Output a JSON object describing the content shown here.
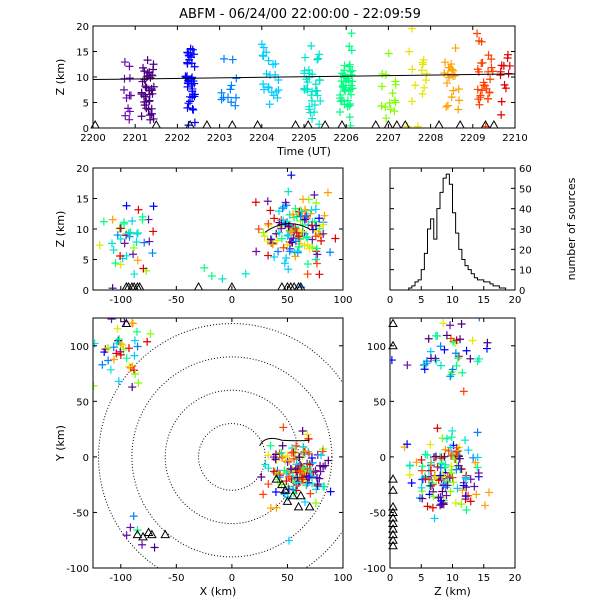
{
  "title": "ABFM - 06/24/00 22:00:00 - 22:09:59",
  "colors": {
    "palette": [
      "#6a0dad",
      "#4b0082",
      "#0000ff",
      "#0080ff",
      "#00ccff",
      "#00e5cc",
      "#00ff80",
      "#80ff00",
      "#e5e500",
      "#ffa000",
      "#ff4000",
      "#e00000"
    ],
    "station_marker": "#000000",
    "range_rings": "#000000"
  },
  "chart_data": [
    {
      "id": "time-height",
      "type": "scatter",
      "title": "",
      "xlabel": "Time (UT)",
      "ylabel": "Z (km)",
      "xlim": [
        2200,
        2210
      ],
      "ylim": [
        0,
        20
      ],
      "x_ticks": [
        "2200",
        "2201",
        "2202",
        "2203",
        "2204",
        "2205",
        "2206",
        "2207",
        "2208",
        "2209",
        "2210"
      ],
      "y_ticks": [
        "0",
        "5",
        "10",
        "15",
        "20"
      ],
      "marker": "plus",
      "note_line": "black reference line rising from Z≈9.5 to Z≈10.6",
      "line_points": [
        [
          2200,
          9.5
        ],
        [
          2210,
          10.6
        ]
      ],
      "station_x": [
        2200.05,
        2201.5,
        2202.3,
        2202.7,
        2203.3,
        2203.9,
        2204.8,
        2205.1,
        2205.5,
        2205.9,
        2206.7,
        2207.0,
        2207.2,
        2207.4,
        2208.2,
        2208.7,
        2209.3,
        2209.5
      ],
      "bursts": [
        {
          "x": 2200.8,
          "spread": 0.1,
          "yc": 8,
          "ysd": 4,
          "n": 12,
          "color_index": 0
        },
        {
          "x": 2201.3,
          "spread": 0.15,
          "yc": 8,
          "ysd": 3.5,
          "n": 40,
          "color_index": 1
        },
        {
          "x": 2202.3,
          "spread": 0.12,
          "yc": 9,
          "ysd": 3.5,
          "n": 40,
          "color_index": 2
        },
        {
          "x": 2203.2,
          "spread": 0.2,
          "yc": 9,
          "ysd": 3.5,
          "n": 12,
          "color_index": 3
        },
        {
          "x": 2204.2,
          "spread": 0.2,
          "yc": 9,
          "ysd": 3.5,
          "n": 22,
          "color_index": 4
        },
        {
          "x": 2205.2,
          "spread": 0.2,
          "yc": 8.5,
          "ysd": 3.5,
          "n": 35,
          "color_index": 5
        },
        {
          "x": 2206.0,
          "spread": 0.15,
          "yc": 8.5,
          "ysd": 3.5,
          "n": 45,
          "color_index": 6
        },
        {
          "x": 2207.0,
          "spread": 0.2,
          "yc": 8,
          "ysd": 3.5,
          "n": 15,
          "color_index": 7
        },
        {
          "x": 2207.7,
          "spread": 0.25,
          "yc": 9,
          "ysd": 4,
          "n": 15,
          "color_index": 8
        },
        {
          "x": 2208.5,
          "spread": 0.2,
          "yc": 9,
          "ysd": 3.5,
          "n": 20,
          "color_index": 9
        },
        {
          "x": 2209.3,
          "spread": 0.2,
          "yc": 9,
          "ysd": 3.5,
          "n": 28,
          "color_index": 10
        },
        {
          "x": 2209.8,
          "spread": 0.15,
          "yc": 9,
          "ysd": 4,
          "n": 12,
          "color_index": 11
        }
      ]
    },
    {
      "id": "x-z",
      "type": "scatter",
      "xlabel": "",
      "ylabel": "Z (km)",
      "xlim": [
        -125,
        100
      ],
      "ylim": [
        0,
        20
      ],
      "x_ticks": [
        "-100",
        "-50",
        "0",
        "50",
        "100"
      ],
      "y_ticks": [
        "0",
        "5",
        "10",
        "15",
        "20"
      ],
      "marker": "plus",
      "station_x": [
        -95,
        -93,
        -90,
        -88,
        -85,
        -83,
        -30,
        0,
        45,
        50,
        53,
        56,
        60,
        62
      ],
      "clusters": [
        {
          "xc": -95,
          "xsd": 12,
          "yc": 8.5,
          "ysd": 3,
          "n": 45
        },
        {
          "xc": 60,
          "xsd": 15,
          "yc": 9,
          "ysd": 3,
          "n": 150
        },
        {
          "xc": -25,
          "xsd": 15,
          "yc": 3,
          "ysd": 2,
          "n": 4
        }
      ]
    },
    {
      "id": "altitude-histogram",
      "type": "line",
      "xlabel": "",
      "ylabel": "number of sources",
      "xlim": [
        0,
        20
      ],
      "ylim": [
        0,
        60
      ],
      "x_ticks": [
        "0",
        "5",
        "10",
        "15",
        "20"
      ],
      "y_ticks": [
        "0",
        "10",
        "20",
        "30",
        "40",
        "50",
        "60"
      ],
      "step": 0.5,
      "bins_x": [
        3,
        3.5,
        4,
        4.5,
        5,
        5.5,
        6,
        6.5,
        7,
        7.5,
        8,
        8.5,
        9,
        9.5,
        10,
        10.5,
        11,
        11.5,
        12,
        12.5,
        13,
        13.5,
        14,
        14.5,
        15,
        15.5,
        16,
        16.5,
        17,
        17.5,
        18
      ],
      "counts": [
        1,
        2,
        4,
        5,
        10,
        18,
        30,
        35,
        25,
        40,
        48,
        55,
        57,
        52,
        38,
        28,
        20,
        15,
        12,
        10,
        8,
        6,
        5,
        5,
        4,
        4,
        3,
        2,
        2,
        1,
        1
      ]
    },
    {
      "id": "plan-view",
      "type": "scatter",
      "xlabel": "X (km)",
      "ylabel": "Y (km)",
      "xlim": [
        -125,
        100
      ],
      "ylim": [
        -100,
        125
      ],
      "x_ticks": [
        "-100",
        "-50",
        "0",
        "50",
        "100"
      ],
      "y_ticks": [
        "-100",
        "-50",
        "0",
        "50",
        "100"
      ],
      "marker": "plus",
      "range_rings_km": [
        30,
        60,
        90,
        120
      ],
      "stations": [
        [
          -95,
          120
        ],
        [
          -85,
          -70
        ],
        [
          -80,
          -72
        ],
        [
          -75,
          -68
        ],
        [
          -72,
          -70
        ],
        [
          -60,
          -70
        ],
        [
          40,
          -20
        ],
        [
          45,
          -25
        ],
        [
          48,
          -30
        ],
        [
          50,
          -40
        ],
        [
          55,
          -35
        ],
        [
          60,
          -45
        ],
        [
          62,
          -35
        ],
        [
          70,
          -45
        ]
      ],
      "clusters": [
        {
          "xc": 60,
          "xsd": 15,
          "yc": -15,
          "ysd": 15,
          "n": 150
        },
        {
          "xc": -95,
          "xsd": 10,
          "yc": 95,
          "ysd": 20,
          "n": 45
        },
        {
          "xc": -80,
          "xsd": 10,
          "yc": -70,
          "ysd": 8,
          "n": 6
        }
      ],
      "outline_note": "black outline of storm near (30..70, -5..15)"
    },
    {
      "id": "z-y",
      "type": "scatter",
      "xlabel": "Z (km)",
      "ylabel": "",
      "xlim": [
        0,
        20
      ],
      "ylim": [
        -100,
        125
      ],
      "x_ticks": [
        "0",
        "5",
        "10",
        "15",
        "20"
      ],
      "y_ticks": [
        "-100",
        "-50",
        "0",
        "50",
        "100"
      ],
      "marker": "plus",
      "station_y": [
        120,
        100,
        -20,
        -30,
        -45,
        -50,
        -55,
        -60,
        -65,
        -70,
        -75,
        -80
      ],
      "clusters": [
        {
          "xc": 8.5,
          "xsd": 3,
          "yc": 95,
          "ysd": 20,
          "n": 45
        },
        {
          "xc": 9,
          "xsd": 3,
          "yc": -15,
          "ysd": 18,
          "n": 150
        }
      ]
    }
  ]
}
